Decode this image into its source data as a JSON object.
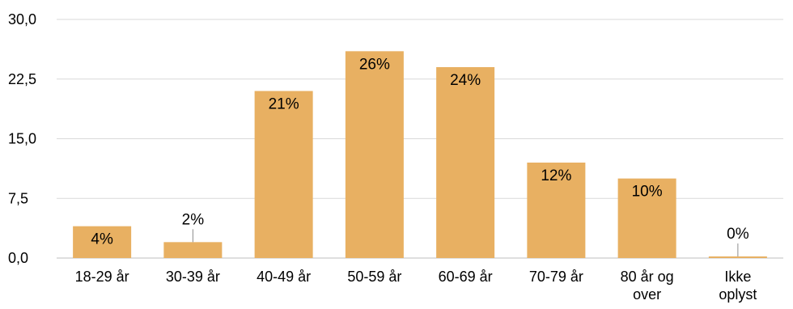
{
  "chart_data": {
    "type": "bar",
    "categories": [
      "18-29 år",
      "30-39 år",
      "40-49 år",
      "50-59 år",
      "60-69 år",
      "70-79 år",
      "80 år og over",
      "Ikke oplyst"
    ],
    "category_lines": [
      [
        "18-29 år"
      ],
      [
        "30-39 år"
      ],
      [
        "40-49 år"
      ],
      [
        "50-59 år"
      ],
      [
        "60-69 år"
      ],
      [
        "70-79 år"
      ],
      [
        "80 år og",
        "over"
      ],
      [
        "Ikke",
        "oplyst"
      ]
    ],
    "values": [
      4,
      2,
      21,
      26,
      24,
      12,
      10,
      0.2
    ],
    "data_labels": [
      "4%",
      "2%",
      "21%",
      "26%",
      "24%",
      "12%",
      "10%",
      "0%"
    ],
    "y_ticks": [
      "0,0",
      "7,5",
      "15,0",
      "22,5",
      "30,0"
    ],
    "ylim": [
      0,
      30
    ],
    "grid": true,
    "bar_color": "#e8b062"
  }
}
